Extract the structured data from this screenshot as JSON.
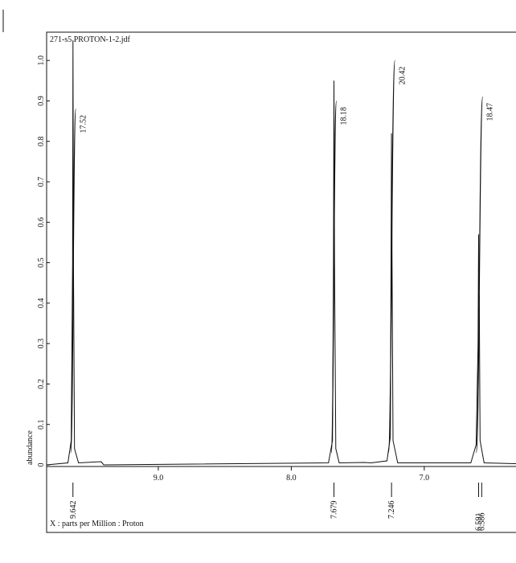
{
  "chart_data": {
    "type": "spectrum",
    "title": "271-s5 PROTON-1-2.jdf",
    "y_label": "abundance",
    "x_label": "X : parts per Million : Proton",
    "xlim": [
      9.84,
      6.31
    ],
    "ylim": [
      0,
      1.07
    ],
    "xticks": [
      {
        "value": 9,
        "label": "9.0"
      },
      {
        "value": 8,
        "label": "8.0"
      },
      {
        "value": 7,
        "label": "7.0"
      }
    ],
    "yticks": [
      0,
      0.1,
      0.2,
      0.3,
      0.4,
      0.5,
      0.6,
      0.7,
      0.8,
      0.9,
      {
        "value": 1,
        "label": "1.0"
      }
    ],
    "color": "#111111",
    "x": [
      9.84,
      9.68,
      9.655,
      9.645,
      9.642,
      9.638,
      9.63,
      9.6,
      9.43,
      9.41,
      7.72,
      7.69,
      7.683,
      7.679,
      7.675,
      7.665,
      7.64,
      7.45,
      7.4,
      7.28,
      7.255,
      7.25,
      7.246,
      7.242,
      7.235,
      7.2,
      7.0,
      6.65,
      6.61,
      6.595,
      6.591,
      6.588,
      6.586,
      6.58,
      6.55,
      6.31
    ],
    "y": [
      0,
      0.005,
      0.06,
      0.5,
      1.05,
      0.5,
      0.04,
      0.005,
      0.008,
      0,
      0.005,
      0.06,
      0.5,
      0.95,
      0.5,
      0.04,
      0.005,
      0.006,
      0.005,
      0.01,
      0.07,
      0.5,
      0.82,
      0.5,
      0.06,
      0.005,
      0.005,
      0.005,
      0.05,
      0.3,
      0.57,
      0.4,
      0.42,
      0.06,
      0.005,
      0.003
    ],
    "peaks": [
      9.642,
      7.679,
      7.246,
      6.591,
      6.586
    ],
    "integrals": [
      {
        "value": 17.52,
        "from": 9.66,
        "to": 9.62,
        "top": 0.88
      },
      {
        "value": 18.18,
        "from": 7.7,
        "to": 7.66,
        "top": 0.9
      },
      {
        "value": 20.42,
        "from": 7.27,
        "to": 7.22,
        "top": 1.0
      },
      {
        "value": 18.47,
        "from": 6.61,
        "to": 6.56,
        "top": 0.91
      }
    ]
  }
}
